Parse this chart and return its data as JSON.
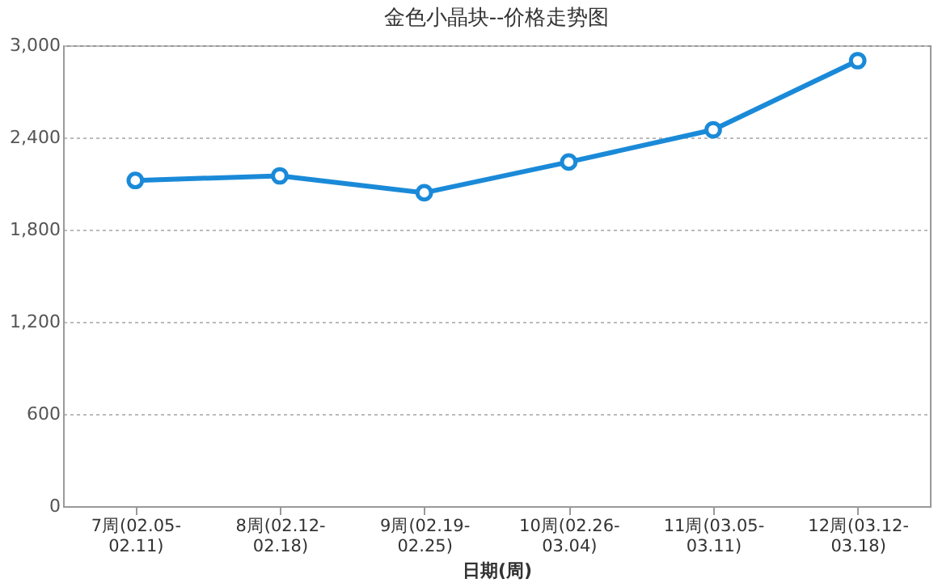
{
  "chart_data": {
    "type": "line",
    "title": "金色小晶块--价格走势图",
    "xlabel": "日期(周)",
    "categories": [
      "7周(02.05-02.11)",
      "8周(02.12-02.18)",
      "9周(02.19-02.25)",
      "10周(02.26-03.04)",
      "11周(03.05-03.11)",
      "12周(03.12-03.18)"
    ],
    "series": [
      {
        "color": "#1a8ad8",
        "values": [
          2120,
          2150,
          2040,
          2240,
          2450,
          2900
        ]
      }
    ],
    "ylim": [
      0,
      3000
    ],
    "yticks": [
      {
        "value": 0,
        "label": "0"
      },
      {
        "value": 600,
        "label": "600"
      },
      {
        "value": 1200,
        "label": "1,200"
      },
      {
        "value": 1800,
        "label": "1,800"
      },
      {
        "value": 2400,
        "label": "2,400"
      },
      {
        "value": 3000,
        "label": "3,000"
      }
    ],
    "grid": "y",
    "legend": false,
    "marker": "circle",
    "line_style": "solid"
  }
}
